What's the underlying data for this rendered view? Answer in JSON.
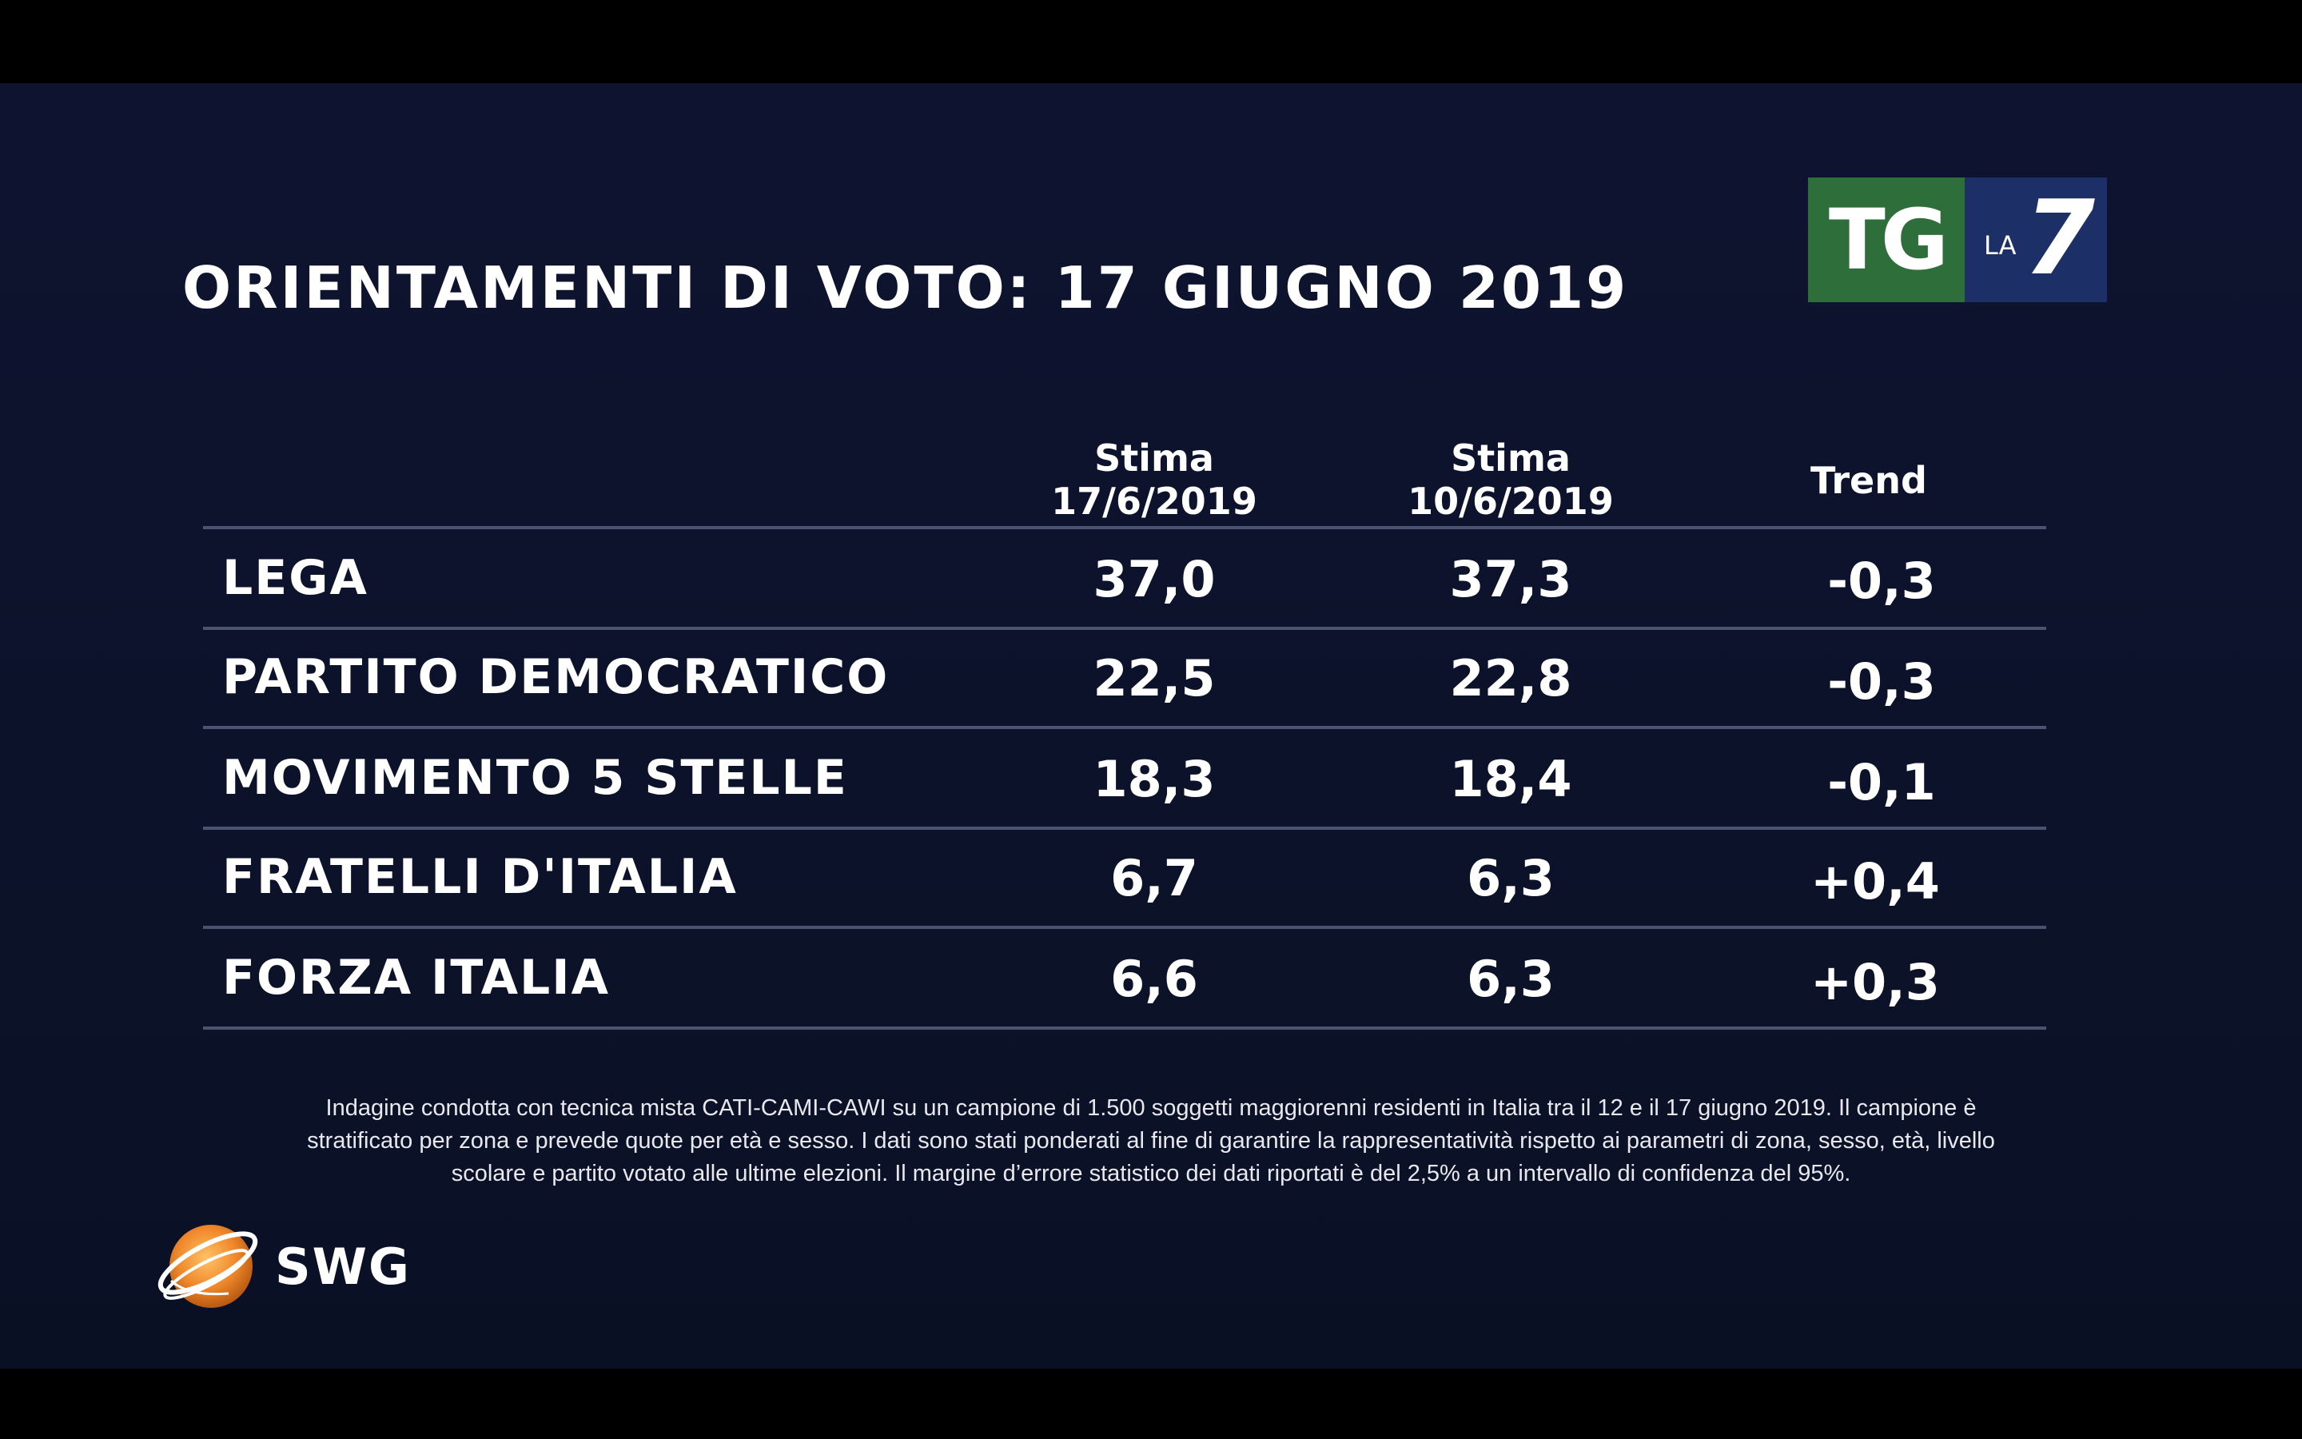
{
  "title": "ORIENTAMENTI DI VOTO: 17 GIUGNO 2019",
  "logo": {
    "tg": "TG",
    "la": "LA",
    "seven": "7",
    "colors": {
      "tg_bg": "#2e6e3a",
      "la7_bg": "#1c2f66"
    }
  },
  "chart_data": {
    "type": "table",
    "columns": [
      {
        "line1": "Stima",
        "line2": "17/6/2019"
      },
      {
        "line1": "Stima",
        "line2": "10/6/2019"
      },
      {
        "line1": "Trend",
        "line2": ""
      }
    ],
    "rows": [
      {
        "party": "LEGA",
        "stima_17": "37,0",
        "stima_10": "37,3",
        "trend": "-0,3"
      },
      {
        "party": "PARTITO DEMOCRATICO",
        "stima_17": "22,5",
        "stima_10": "22,8",
        "trend": "-0,3"
      },
      {
        "party": "MOVIMENTO 5 STELLE",
        "stima_17": "18,3",
        "stima_10": "18,4",
        "trend": "-0,1"
      },
      {
        "party": "FRATELLI D'ITALIA",
        "stima_17": "6,7",
        "stima_10": "6,3",
        "trend": "+0,4"
      },
      {
        "party": "FORZA ITALIA",
        "stima_17": "6,6",
        "stima_10": "6,3",
        "trend": "+0,3"
      }
    ]
  },
  "footnote": {
    "line1": "Indagine condotta con tecnica mista CATI-CAMI-CAWI su un campione di 1.500 soggetti maggiorenni residenti in Italia tra il 12 e il 17 giugno 2019. Il campione è",
    "line2": "stratificato per zona e prevede quote per età e sesso. I dati sono stati ponderati al fine di garantire la rappresentatività rispetto ai parametri di zona, sesso, età, livello",
    "line3": "scolare e partito votato alle ultime elezioni. Il margine d’errore statistico dei dati riportati è del 2,5% a un intervallo di confidenza del 95%."
  },
  "source_logo": {
    "text": "SWG",
    "globe_color": "#f0872a"
  }
}
